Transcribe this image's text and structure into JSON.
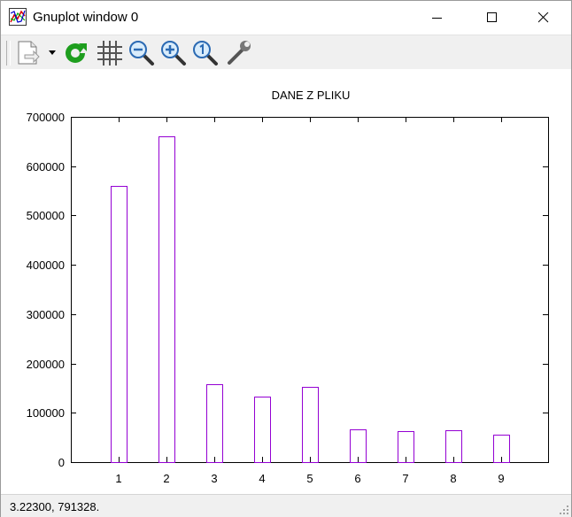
{
  "window": {
    "title": "Gnuplot window 0"
  },
  "toolbar": {
    "buttons": [
      {
        "name": "copy-print-icon"
      },
      {
        "name": "replot-icon"
      },
      {
        "name": "grid-icon"
      },
      {
        "name": "zoom-out-icon"
      },
      {
        "name": "zoom-in-icon"
      },
      {
        "name": "zoom-reset-icon"
      },
      {
        "name": "settings-wrench-icon"
      }
    ]
  },
  "status": {
    "coords": "3.22300,  791328."
  },
  "colors": {
    "bar": "#9400d3",
    "axis": "#000000"
  },
  "chart_data": {
    "type": "bar",
    "title": "DANE Z PLIKU",
    "categories": [
      "1",
      "2",
      "3",
      "4",
      "5",
      "6",
      "7",
      "8",
      "9"
    ],
    "values": [
      560000,
      660000,
      158000,
      132000,
      153000,
      67000,
      62000,
      65000,
      56000
    ],
    "ylim": [
      0,
      700000
    ],
    "yticks": [
      "0",
      "100000",
      "200000",
      "300000",
      "400000",
      "500000",
      "600000",
      "700000"
    ],
    "grid": false,
    "bar_style": "outline"
  }
}
